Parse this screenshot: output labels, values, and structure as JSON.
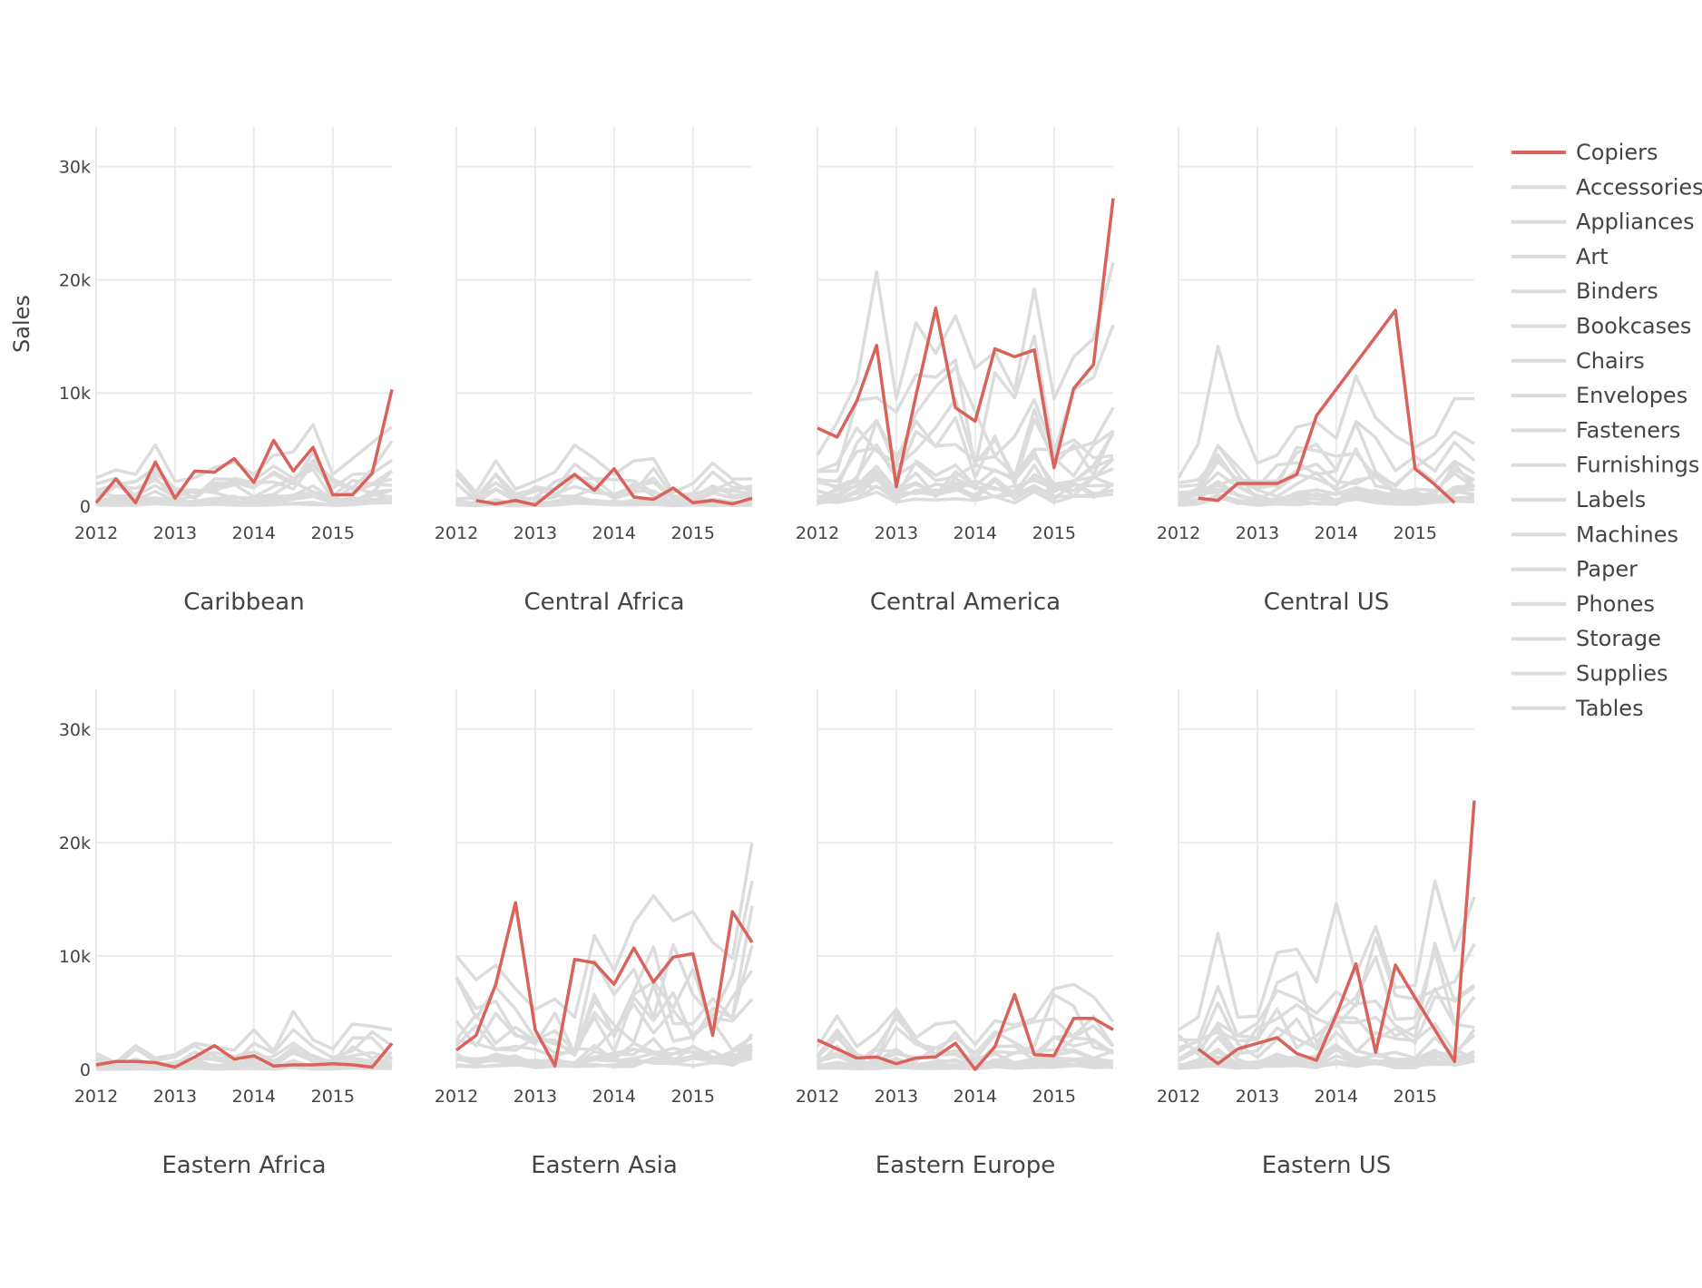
{
  "chart_data": {
    "type": "line",
    "ylabel": "Sales",
    "ylim": [
      0,
      33500
    ],
    "y_ticks": [
      {
        "value": 0,
        "label": "0"
      },
      {
        "value": 10000,
        "label": "10k"
      },
      {
        "value": 20000,
        "label": "20k"
      },
      {
        "value": 30000,
        "label": "30k"
      }
    ],
    "x_ticks": [
      "2012",
      "2013",
      "2014",
      "2015"
    ],
    "x_range": [
      2012,
      2015.75
    ],
    "grid": true,
    "legend_position": "right",
    "highlight_color": "#d9625b",
    "background_color": "#dcdcdc",
    "legend": [
      {
        "label": "Copiers",
        "color": "#d9625b"
      },
      {
        "label": "Accessories",
        "color": "#dcdcdc"
      },
      {
        "label": "Appliances",
        "color": "#dcdcdc"
      },
      {
        "label": "Art",
        "color": "#dcdcdc"
      },
      {
        "label": "Binders",
        "color": "#dcdcdc"
      },
      {
        "label": "Bookcases",
        "color": "#dcdcdc"
      },
      {
        "label": "Chairs",
        "color": "#dcdcdc"
      },
      {
        "label": "Envelopes",
        "color": "#dcdcdc"
      },
      {
        "label": "Fasteners",
        "color": "#dcdcdc"
      },
      {
        "label": "Furnishings",
        "color": "#dcdcdc"
      },
      {
        "label": "Labels",
        "color": "#dcdcdc"
      },
      {
        "label": "Machines",
        "color": "#dcdcdc"
      },
      {
        "label": "Paper",
        "color": "#dcdcdc"
      },
      {
        "label": "Phones",
        "color": "#dcdcdc"
      },
      {
        "label": "Storage",
        "color": "#dcdcdc"
      },
      {
        "label": "Supplies",
        "color": "#dcdcdc"
      },
      {
        "label": "Tables",
        "color": "#dcdcdc"
      }
    ],
    "background_series": [
      "Accessories",
      "Appliances",
      "Art",
      "Binders",
      "Bookcases",
      "Chairs",
      "Envelopes",
      "Fasteners",
      "Furnishings",
      "Labels",
      "Machines",
      "Paper",
      "Phones",
      "Storage",
      "Supplies",
      "Tables"
    ],
    "panels": [
      {
        "title": "Caribbean",
        "highlight": {
          "name": "Copiers",
          "x": [
            2012,
            2012.25,
            2012.5,
            2012.75,
            2013,
            2013.25,
            2013.5,
            2013.75,
            2014,
            2014.25,
            2014.5,
            2014.75,
            2015,
            2015.25,
            2015.5,
            2015.75
          ],
          "y": [
            300,
            2400,
            300,
            3900,
            700,
            3100,
            3000,
            4200,
            2100,
            5800,
            3100,
            5200,
            1000,
            1000,
            2900,
            10300
          ]
        },
        "background_envelope": [
          2500,
          3200,
          2800,
          5400,
          2200,
          2500,
          3400,
          3900,
          2800,
          4500,
          4800,
          7200,
          2800,
          4200,
          5600,
          7000
        ]
      },
      {
        "title": "Central Africa",
        "highlight": {
          "name": "Copiers",
          "x": [
            2012.25,
            2012.5,
            2012.75,
            2013,
            2013.25,
            2013.5,
            2013.75,
            2014,
            2014.25,
            2014.5,
            2014.75,
            2015,
            2015.25,
            2015.5,
            2015.75
          ],
          "y": [
            500,
            200,
            500,
            100,
            1500,
            2800,
            1400,
            3300,
            800,
            600,
            1600,
            300,
            500,
            200,
            700
          ]
        },
        "background_envelope": [
          3200,
          1200,
          4000,
          1500,
          2200,
          3000,
          5400,
          4200,
          2800,
          4000,
          4200,
          1200,
          2000,
          3800,
          2400,
          2400
        ]
      },
      {
        "title": "Central America",
        "highlight": {
          "name": "Copiers",
          "x": [
            2012,
            2012.25,
            2012.5,
            2012.75,
            2013,
            2013.25,
            2013.5,
            2013.75,
            2014,
            2014.25,
            2014.5,
            2014.75,
            2015,
            2015.25,
            2015.5,
            2015.75
          ],
          "y": [
            6900,
            6100,
            9300,
            14200,
            1700,
            9800,
            17500,
            8700,
            7500,
            13900,
            13200,
            13800,
            3400,
            10400,
            12500,
            27200
          ]
        },
        "background_envelope": [
          4500,
          7400,
          11000,
          20700,
          9500,
          16200,
          13500,
          16800,
          12200,
          13600,
          10200,
          19200,
          9500,
          13200,
          14800,
          21500
        ]
      },
      {
        "title": "Central US",
        "highlight": {
          "name": "Copiers",
          "x": [
            2012.25,
            2012.5,
            2012.75,
            2013,
            2013.25,
            2013.5,
            2013.75,
            2014.75,
            2015,
            2015.25,
            2015.5
          ],
          "y": [
            700,
            500,
            2000,
            2000,
            2000,
            2800,
            8000,
            17300,
            3300,
            1900,
            300
          ]
        },
        "background_envelope": [
          2500,
          5500,
          14100,
          8000,
          3800,
          4500,
          7000,
          7400,
          6000,
          11500,
          7800,
          6200,
          5200,
          6200,
          9500,
          9500
        ]
      },
      {
        "title": "Eastern Africa",
        "highlight": {
          "name": "Copiers",
          "x": [
            2012,
            2012.25,
            2012.5,
            2012.75,
            2013,
            2013.25,
            2013.5,
            2013.75,
            2014,
            2014.25,
            2014.5,
            2014.75,
            2015,
            2015.25,
            2015.5,
            2015.75
          ],
          "y": [
            400,
            700,
            700,
            600,
            200,
            1100,
            2100,
            900,
            1200,
            300,
            400,
            400,
            500,
            400,
            200,
            2300
          ]
        },
        "background_envelope": [
          1400,
          600,
          2100,
          1000,
          1300,
          2300,
          2000,
          1700,
          3500,
          1600,
          5100,
          2600,
          1800,
          4000,
          3800,
          3500
        ]
      },
      {
        "title": "Eastern Asia",
        "highlight": {
          "name": "Copiers",
          "x": [
            2012,
            2012.25,
            2012.5,
            2012.75,
            2013,
            2013.25,
            2013.5,
            2013.75,
            2014,
            2014.25,
            2014.5,
            2014.75,
            2015,
            2015.25,
            2015.5,
            2015.75
          ],
          "y": [
            1700,
            3000,
            7500,
            14700,
            3500,
            300,
            9700,
            9400,
            7500,
            10700,
            7700,
            9900,
            10200,
            3000,
            13900,
            11200
          ]
        },
        "background_envelope": [
          10000,
          7900,
          9200,
          7100,
          5300,
          6200,
          4600,
          11800,
          8700,
          12900,
          15300,
          13100,
          13900,
          11200,
          9800,
          20000
        ]
      },
      {
        "title": "Eastern Europe",
        "highlight": {
          "name": "Copiers",
          "x": [
            2012,
            2012.25,
            2012.5,
            2012.75,
            2013,
            2013.25,
            2013.5,
            2013.75,
            2014,
            2014.25,
            2014.5,
            2014.75,
            2015,
            2015.25,
            2015.5,
            2015.75
          ],
          "y": [
            2600,
            1800,
            1000,
            1100,
            500,
            1000,
            1100,
            2300,
            0,
            2000,
            6600,
            1300,
            1200,
            4500,
            4500,
            3500
          ]
        },
        "background_envelope": [
          2000,
          4700,
          2000,
          3300,
          5300,
          2800,
          4000,
          4200,
          2200,
          4300,
          3900,
          4500,
          7100,
          7500,
          6400,
          4200
        ]
      },
      {
        "title": "Eastern US",
        "highlight": {
          "name": "Copiers",
          "x": [
            2012.25,
            2012.5,
            2012.75,
            2013,
            2013.25,
            2013.5,
            2013.75,
            2014,
            2014.25,
            2014.5,
            2014.75,
            2015,
            2015.25,
            2015.5,
            2015.75
          ],
          "y": [
            1800,
            500,
            1800,
            2300,
            2800,
            1400,
            800,
            4800,
            9300,
            1500,
            9200,
            6300,
            3500,
            700,
            23700
          ]
        },
        "background_envelope": [
          3500,
          4600,
          12000,
          4600,
          4700,
          10300,
          10600,
          7700,
          14600,
          8400,
          12600,
          7200,
          7400,
          16600,
          10500,
          15200
        ]
      }
    ]
  }
}
